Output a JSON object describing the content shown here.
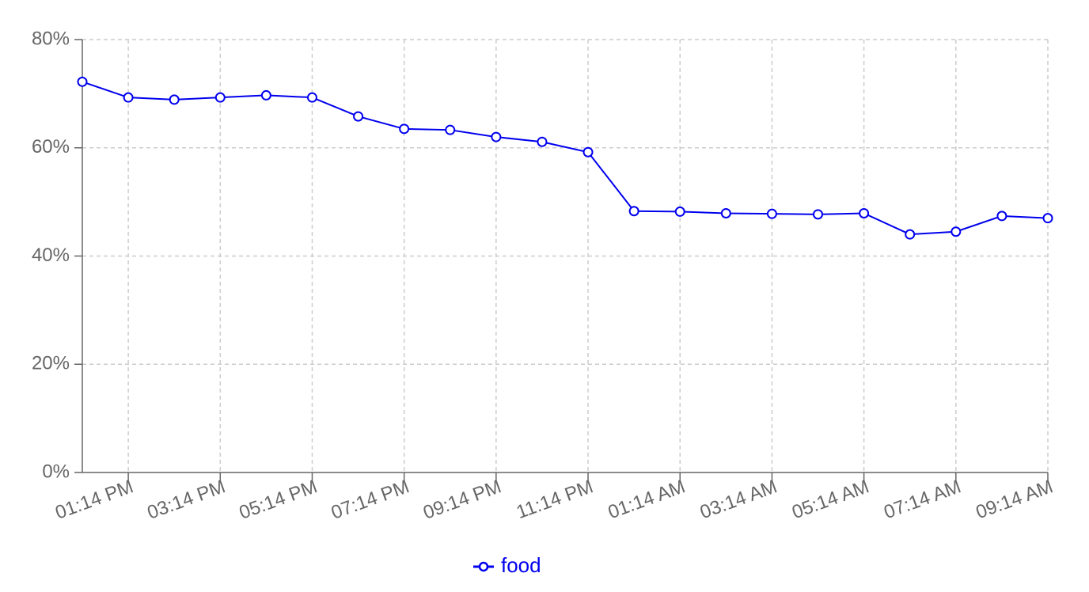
{
  "chart_data": {
    "type": "line",
    "title": "",
    "xlabel": "",
    "ylabel": "",
    "x": [
      "12:14 PM",
      "01:14 PM",
      "02:14 PM",
      "03:14 PM",
      "04:14 PM",
      "05:14 PM",
      "06:14 PM",
      "07:14 PM",
      "08:14 PM",
      "09:14 PM",
      "10:14 PM",
      "11:14 PM",
      "12:14 AM",
      "01:14 AM",
      "02:14 AM",
      "03:14 AM",
      "04:14 AM",
      "05:14 AM",
      "06:14 AM",
      "07:14 AM",
      "08:14 AM",
      "09:14 AM"
    ],
    "x_tick_labels": [
      "01:14 PM",
      "03:14 PM",
      "05:14 PM",
      "07:14 PM",
      "09:14 PM",
      "11:14 PM",
      "01:14 AM",
      "03:14 AM",
      "05:14 AM",
      "07:14 AM",
      "09:14 AM"
    ],
    "series": [
      {
        "name": "food",
        "color": "#0000ee",
        "values": [
          72.2,
          69.3,
          68.9,
          69.3,
          69.7,
          69.3,
          65.8,
          63.5,
          63.3,
          62.0,
          61.1,
          59.2,
          48.3,
          48.2,
          47.9,
          47.8,
          47.7,
          47.9,
          44.0,
          44.5,
          47.4,
          47.0
        ]
      }
    ],
    "ylim": [
      0,
      80
    ],
    "y_ticks": [
      0,
      20,
      40,
      60,
      80
    ],
    "y_tick_labels": [
      "0%",
      "20%",
      "40%",
      "60%",
      "80%"
    ],
    "grid": true,
    "legend": "bottom-center"
  }
}
